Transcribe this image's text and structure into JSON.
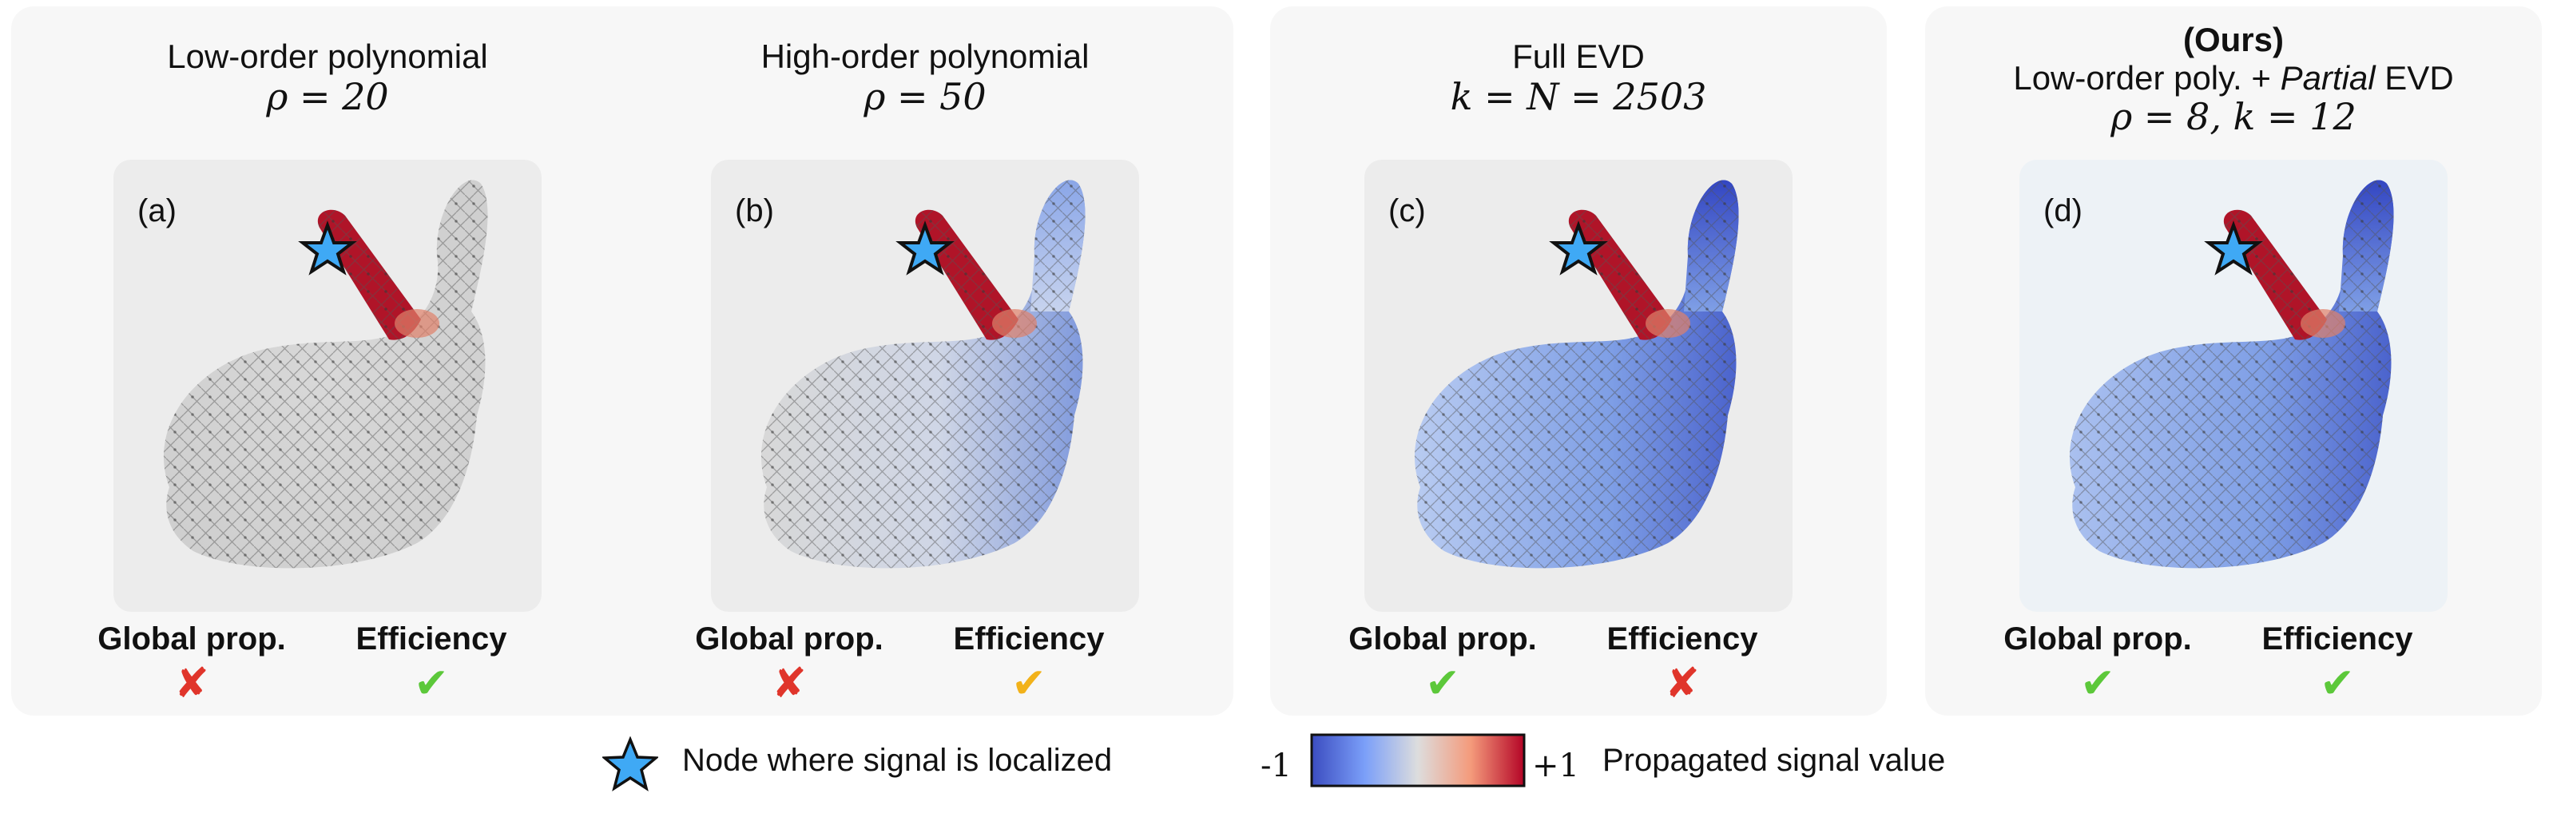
{
  "panels": [
    {
      "title_line1": "Low-order polynomial",
      "title_math": "ρ = 20",
      "tag": "(a)",
      "criteria": {
        "global_label": "Global prop.",
        "efficiency_label": "Efficiency"
      },
      "global_mark": "✘",
      "efficiency_mark": "✔",
      "global_color": "#e0352b",
      "efficiency_color": "#5cc83a"
    },
    {
      "title_line1": "High-order polynomial",
      "title_math": "ρ = 50",
      "tag": "(b)",
      "criteria": {
        "global_label": "Global prop.",
        "efficiency_label": "Efficiency"
      },
      "global_mark": "✘",
      "efficiency_mark": "✔",
      "global_color": "#e0352b",
      "efficiency_color": "#f2b21a"
    },
    {
      "title_line1": "Full EVD",
      "title_math": "k = N = 2503",
      "tag": "(c)",
      "criteria": {
        "global_label": "Global prop.",
        "efficiency_label": "Efficiency"
      },
      "global_mark": "✔",
      "efficiency_mark": "✘",
      "global_color": "#5cc83a",
      "efficiency_color": "#e0352b"
    },
    {
      "title_ours": "(Ours)",
      "title_line1a": "Low-order poly. + ",
      "title_line1b": "Partial",
      "title_line1c": " EVD",
      "title_math": "ρ = 8, k = 12",
      "tag": "(d)",
      "criteria": {
        "global_label": "Global prop.",
        "efficiency_label": "Efficiency"
      },
      "global_mark": "✔",
      "efficiency_mark": "✔",
      "global_color": "#5cc83a",
      "efficiency_color": "#5cc83a"
    }
  ],
  "legend": {
    "star_label": "Node where signal is localized",
    "cbar_min": "-1",
    "cbar_max": "+1",
    "cbar_label": "Propagated signal value",
    "colors": {
      "low": "#3b4cc0",
      "mid": "#dddddd",
      "high": "#b40426",
      "star": "#3fa9f5"
    }
  }
}
